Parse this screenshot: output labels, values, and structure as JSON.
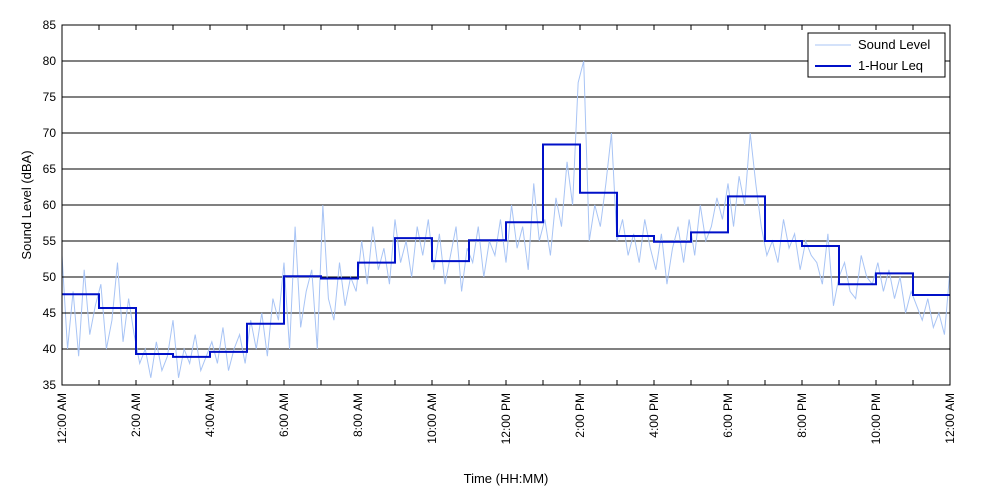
{
  "chart_data": {
    "type": "line",
    "title": "",
    "xlabel": "Time (HH:MM)",
    "ylabel": "Sound Level (dBA)",
    "xlim": [
      0,
      24
    ],
    "ylim": [
      35,
      85
    ],
    "y_ticks": [
      35,
      40,
      45,
      50,
      55,
      60,
      65,
      70,
      75,
      80,
      85
    ],
    "x_ticks": [
      0,
      2,
      4,
      6,
      8,
      10,
      12,
      14,
      16,
      18,
      20,
      22,
      24
    ],
    "x_tick_labels": [
      "12:00 AM",
      "2:00 AM",
      "4:00 AM",
      "6:00 AM",
      "8:00 AM",
      "10:00 AM",
      "12:00 PM",
      "2:00 PM",
      "4:00 PM",
      "6:00 PM",
      "8:00 PM",
      "10:00 PM",
      "12:00 AM"
    ],
    "grid": "horizontal",
    "legend_position": "top-right",
    "series": [
      {
        "name": "Sound Level",
        "style": "thin-line",
        "color": "#a8c4f5",
        "x": [
          0,
          0.15,
          0.3,
          0.45,
          0.6,
          0.75,
          0.9,
          1.05,
          1.2,
          1.35,
          1.5,
          1.65,
          1.8,
          1.95,
          2.1,
          2.25,
          2.4,
          2.55,
          2.7,
          2.85,
          3.0,
          3.15,
          3.3,
          3.45,
          3.6,
          3.75,
          3.9,
          4.05,
          4.2,
          4.35,
          4.5,
          4.65,
          4.8,
          4.95,
          5.1,
          5.25,
          5.4,
          5.55,
          5.7,
          5.85,
          6.0,
          6.15,
          6.3,
          6.45,
          6.6,
          6.75,
          6.9,
          7.05,
          7.2,
          7.35,
          7.5,
          7.65,
          7.8,
          7.95,
          8.1,
          8.25,
          8.4,
          8.55,
          8.7,
          8.85,
          9.0,
          9.15,
          9.3,
          9.45,
          9.6,
          9.75,
          9.9,
          10.05,
          10.2,
          10.35,
          10.5,
          10.65,
          10.8,
          10.95,
          11.1,
          11.25,
          11.4,
          11.55,
          11.7,
          11.85,
          12.0,
          12.15,
          12.3,
          12.45,
          12.6,
          12.75,
          12.9,
          13.05,
          13.2,
          13.35,
          13.5,
          13.65,
          13.8,
          13.95,
          14.1,
          14.25,
          14.4,
          14.55,
          14.7,
          14.85,
          15.0,
          15.15,
          15.3,
          15.45,
          15.6,
          15.75,
          15.9,
          16.05,
          16.2,
          16.35,
          16.5,
          16.65,
          16.8,
          16.95,
          17.1,
          17.25,
          17.4,
          17.55,
          17.7,
          17.85,
          18.0,
          18.15,
          18.3,
          18.45,
          18.6,
          18.75,
          18.9,
          19.05,
          19.2,
          19.35,
          19.5,
          19.65,
          19.8,
          19.95,
          20.1,
          20.25,
          20.4,
          20.55,
          20.7,
          20.85,
          21.0,
          21.15,
          21.3,
          21.45,
          21.6,
          21.75,
          21.9,
          22.05,
          22.2,
          22.35,
          22.5,
          22.65,
          22.8,
          22.95,
          23.1,
          23.25,
          23.4,
          23.55,
          23.7,
          23.85,
          24.0
        ],
        "values": [
          53,
          40,
          48,
          39,
          51,
          42,
          46,
          49,
          40,
          44,
          52,
          41,
          47,
          42,
          38,
          40,
          36,
          41,
          37,
          39,
          44,
          36,
          40,
          38,
          42,
          37,
          39,
          41,
          38,
          43,
          37,
          40,
          42,
          38,
          44,
          40,
          45,
          39,
          47,
          44,
          52,
          40,
          57,
          43,
          48,
          51,
          40,
          60,
          47,
          44,
          52,
          46,
          50,
          48,
          55,
          49,
          57,
          51,
          54,
          49,
          58,
          52,
          55,
          50,
          57,
          53,
          58,
          51,
          56,
          49,
          53,
          57,
          48,
          54,
          52,
          57,
          50,
          55,
          53,
          58,
          52,
          60,
          54,
          57,
          51,
          63,
          55,
          58,
          53,
          61,
          57,
          66,
          60,
          77,
          80,
          55,
          60,
          57,
          63,
          70,
          55,
          58,
          53,
          56,
          52,
          58,
          54,
          51,
          56,
          49,
          54,
          57,
          52,
          58,
          53,
          60,
          55,
          57,
          61,
          58,
          63,
          57,
          64,
          60,
          70,
          63,
          57,
          53,
          55,
          52,
          58,
          54,
          56,
          51,
          55,
          53,
          52,
          49,
          56,
          46,
          50,
          52,
          48,
          47,
          53,
          50,
          49,
          52,
          48,
          51,
          47,
          50,
          45,
          48,
          46,
          44,
          47,
          43,
          45,
          42,
          51
        ]
      },
      {
        "name": "1-Hour Leq",
        "style": "step",
        "color": "#0010c8",
        "x": [
          0,
          1,
          2,
          3,
          4,
          5,
          6,
          7,
          8,
          9,
          10,
          11,
          12,
          13,
          14,
          15,
          16,
          17,
          18,
          19,
          20,
          21,
          22,
          23
        ],
        "values": [
          47.6,
          45.7,
          39.3,
          38.9,
          39.6,
          43.5,
          50.1,
          49.8,
          52.0,
          55.4,
          52.2,
          55.1,
          57.6,
          68.4,
          61.7,
          55.7,
          54.9,
          56.2,
          61.2,
          55.0,
          54.3,
          49.0,
          50.5,
          47.5
        ]
      }
    ]
  }
}
